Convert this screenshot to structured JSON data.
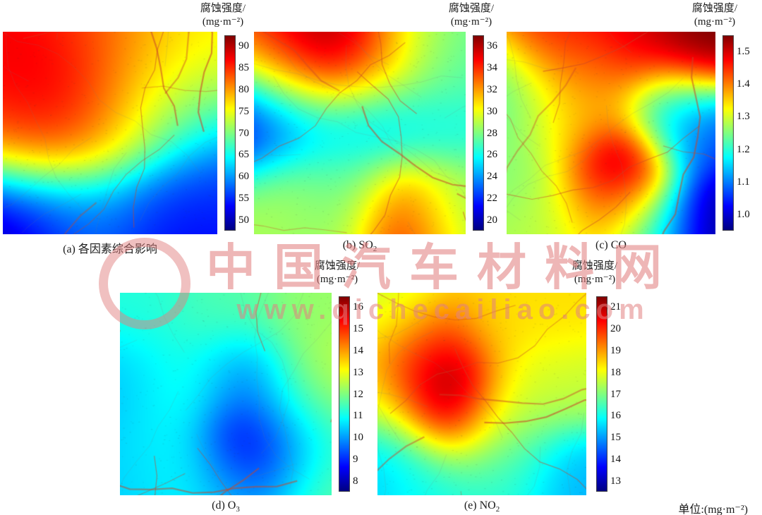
{
  "figure": {
    "unit_note": "单位:(mg·m⁻²)"
  },
  "watermark": {
    "text": "中国汽车材料网",
    "url": "www.qichecailiao.com",
    "color": "#e28282"
  },
  "chart_data": {
    "type": "heatmap",
    "colormap": "jet",
    "unit": "mg·m⁻²",
    "layout": "5 interpolated corrosion-intensity map panels over a city street map: top row (a)(b)(c), bottom row (d)(e); each panel has a vertical jet colorbar on its right titled 腐蚀强度/(mg·m⁻²); grid off; unit note bottom-right",
    "background": "street map underlay with orange road network and faint map labels",
    "panels": [
      {
        "id": "a",
        "variable": "各因素综合影响",
        "caption": {
          "prefix": "(a) 各因素综合影响",
          "sub": ""
        },
        "colorbar": {
          "title_line1": "腐蚀强度/",
          "title_line2": "(mg·m⁻²)",
          "ticks": [
            "90",
            "85",
            "80",
            "75",
            "70",
            "65",
            "60",
            "55",
            "50"
          ],
          "range": [
            47.5,
            92.5
          ]
        },
        "field": {
          "sigma": 0.2,
          "points": [
            [
              0.28,
              0.4,
              95
            ],
            [
              0.15,
              0.28,
              87
            ],
            [
              0.42,
              0.18,
              85
            ],
            [
              0.62,
              0.12,
              82
            ],
            [
              0.1,
              0.55,
              80
            ],
            [
              0.4,
              0.5,
              78
            ],
            [
              0.78,
              0.22,
              75
            ],
            [
              0.6,
              0.45,
              74
            ],
            [
              0.92,
              0.08,
              76
            ],
            [
              0.88,
              0.45,
              62
            ],
            [
              0.03,
              0.93,
              47
            ],
            [
              0.25,
              0.92,
              57
            ],
            [
              0.5,
              0.88,
              59
            ],
            [
              0.75,
              0.95,
              53
            ],
            [
              0.97,
              0.8,
              57
            ],
            [
              0.95,
              0.97,
              52
            ]
          ]
        }
      },
      {
        "id": "b",
        "variable": "SO2",
        "caption": {
          "prefix": "(b) SO",
          "sub": "2"
        },
        "colorbar": {
          "title_line1": "腐蚀强度/",
          "title_line2": "(mg·m⁻²)",
          "ticks": [
            "36",
            "34",
            "32",
            "30",
            "28",
            "26",
            "24",
            "22",
            "20"
          ],
          "range": [
            19,
            37
          ]
        },
        "field": {
          "sigma": 0.17,
          "points": [
            [
              0.35,
              0.1,
              38
            ],
            [
              0.15,
              0.18,
              33
            ],
            [
              0.55,
              0.12,
              34
            ],
            [
              0.8,
              0.08,
              29
            ],
            [
              0.97,
              0.15,
              27
            ],
            [
              0.03,
              0.45,
              20
            ],
            [
              0.25,
              0.45,
              25.5
            ],
            [
              0.55,
              0.4,
              24.5
            ],
            [
              0.85,
              0.45,
              26
            ],
            [
              0.15,
              0.8,
              29
            ],
            [
              0.45,
              0.75,
              26.5
            ],
            [
              0.7,
              0.9,
              35.5
            ],
            [
              0.92,
              0.85,
              28
            ],
            [
              0.3,
              0.95,
              28.5
            ]
          ]
        }
      },
      {
        "id": "c",
        "variable": "CO",
        "caption": {
          "prefix": "(c) CO",
          "sub": ""
        },
        "colorbar": {
          "title_line1": "腐蚀强度/",
          "title_line2": "(mg·m⁻²)",
          "ticks": [
            "1.5",
            "1.4",
            "1.3",
            "1.2",
            "1.1",
            "1.0"
          ],
          "range": [
            0.95,
            1.55
          ]
        },
        "field": {
          "sigma": 0.16,
          "points": [
            [
              0.25,
              0.08,
              1.47
            ],
            [
              0.6,
              0.05,
              1.5
            ],
            [
              0.92,
              0.08,
              1.56
            ],
            [
              0.05,
              0.3,
              1.22
            ],
            [
              0.05,
              0.65,
              1.25
            ],
            [
              0.3,
              0.45,
              1.35
            ],
            [
              0.4,
              0.25,
              1.38
            ],
            [
              0.55,
              0.68,
              1.6
            ],
            [
              0.48,
              0.85,
              1.4
            ],
            [
              0.78,
              0.4,
              1.18
            ],
            [
              0.95,
              0.5,
              1.05
            ],
            [
              0.97,
              0.93,
              0.95
            ],
            [
              0.7,
              0.95,
              1.18
            ],
            [
              0.2,
              0.92,
              1.28
            ]
          ]
        }
      },
      {
        "id": "d",
        "variable": "O3",
        "caption": {
          "prefix": "(d) O",
          "sub": "3"
        },
        "colorbar": {
          "title_line1": "腐蚀强度/",
          "title_line2": "(mg·m⁻²)",
          "ticks": [
            "16",
            "15",
            "14",
            "13",
            "12",
            "11",
            "10",
            "9",
            "8"
          ],
          "range": [
            7.5,
            16.5
          ]
        },
        "field": {
          "sigma": 0.17,
          "points": [
            [
              0.1,
              0.08,
              11.2
            ],
            [
              0.5,
              0.08,
              11.6
            ],
            [
              0.9,
              0.08,
              12.2
            ],
            [
              0.03,
              0.45,
              10.3
            ],
            [
              0.3,
              0.45,
              11.3
            ],
            [
              0.6,
              0.45,
              9.6
            ],
            [
              0.95,
              0.45,
              12.8
            ],
            [
              0.65,
              0.78,
              7.0
            ],
            [
              0.85,
              0.65,
              11.0
            ],
            [
              0.25,
              0.85,
              11.0
            ],
            [
              0.55,
              0.95,
              10.8
            ],
            [
              0.92,
              0.92,
              11.8
            ],
            [
              0.05,
              0.9,
              10.4
            ]
          ]
        }
      },
      {
        "id": "e",
        "variable": "NO2",
        "caption": {
          "prefix": "(e) NO",
          "sub": "2"
        },
        "colorbar": {
          "title_line1": "腐蚀强度/",
          "title_line2": "(mg·m⁻²)",
          "ticks": [
            "21",
            "20",
            "19",
            "18",
            "17",
            "16",
            "15",
            "14",
            "13"
          ],
          "range": [
            12.5,
            21.5
          ]
        },
        "field": {
          "sigma": 0.16,
          "points": [
            [
              0.3,
              0.42,
              22.5
            ],
            [
              0.36,
              0.6,
              21.0
            ],
            [
              0.22,
              0.28,
              19.6
            ],
            [
              0.55,
              0.18,
              18.4
            ],
            [
              0.88,
              0.12,
              18.4
            ],
            [
              0.95,
              0.45,
              17.6
            ],
            [
              0.08,
              0.1,
              17.6
            ],
            [
              0.05,
              0.5,
              18.0
            ],
            [
              0.05,
              0.8,
              15.4
            ],
            [
              0.28,
              0.93,
              16.0
            ],
            [
              0.6,
              0.9,
              16.2
            ],
            [
              0.92,
              0.88,
              15.2
            ],
            [
              0.68,
              0.5,
              17.8
            ],
            [
              0.6,
              0.7,
              17.0
            ]
          ]
        }
      }
    ]
  }
}
